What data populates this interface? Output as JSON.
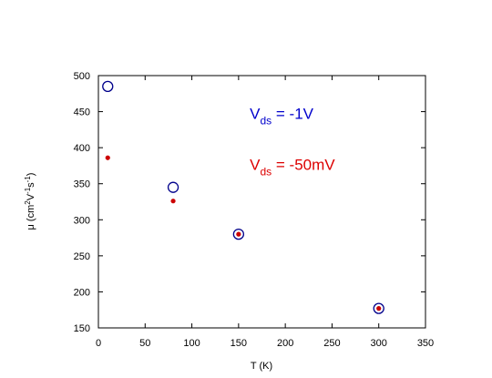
{
  "chart_data": {
    "type": "scatter",
    "title": "",
    "xlabel": "T (K)",
    "ylabel": {
      "prefix": "μ (cm",
      "sup1": "2",
      "mid1": "V",
      "sup2": "-1",
      "mid2": "s",
      "sup3": "-1",
      "suffix": ")"
    },
    "xlim": [
      0,
      350
    ],
    "ylim": [
      150,
      500
    ],
    "xticks": [
      0,
      50,
      100,
      150,
      200,
      250,
      300,
      350
    ],
    "yticks": [
      150,
      200,
      250,
      300,
      350,
      400,
      450,
      500
    ],
    "grid": false,
    "series": [
      {
        "marker": "open-circle",
        "color": "#00008b",
        "x": [
          10,
          80,
          150,
          300
        ],
        "y": [
          485,
          345,
          280,
          177
        ]
      },
      {
        "marker": "filled-dot",
        "color": "#cc0000",
        "x": [
          10,
          80,
          150,
          300
        ],
        "y": [
          386,
          326,
          280,
          177
        ]
      }
    ],
    "annotations": [
      {
        "main": "V",
        "sub": "ds",
        "tail": " = -1V",
        "color": "#0000cc",
        "x": 162,
        "y": 440
      },
      {
        "main": "V",
        "sub": "ds",
        "tail": " = -50mV",
        "color": "#dd0000",
        "x": 162,
        "y": 369
      }
    ]
  }
}
